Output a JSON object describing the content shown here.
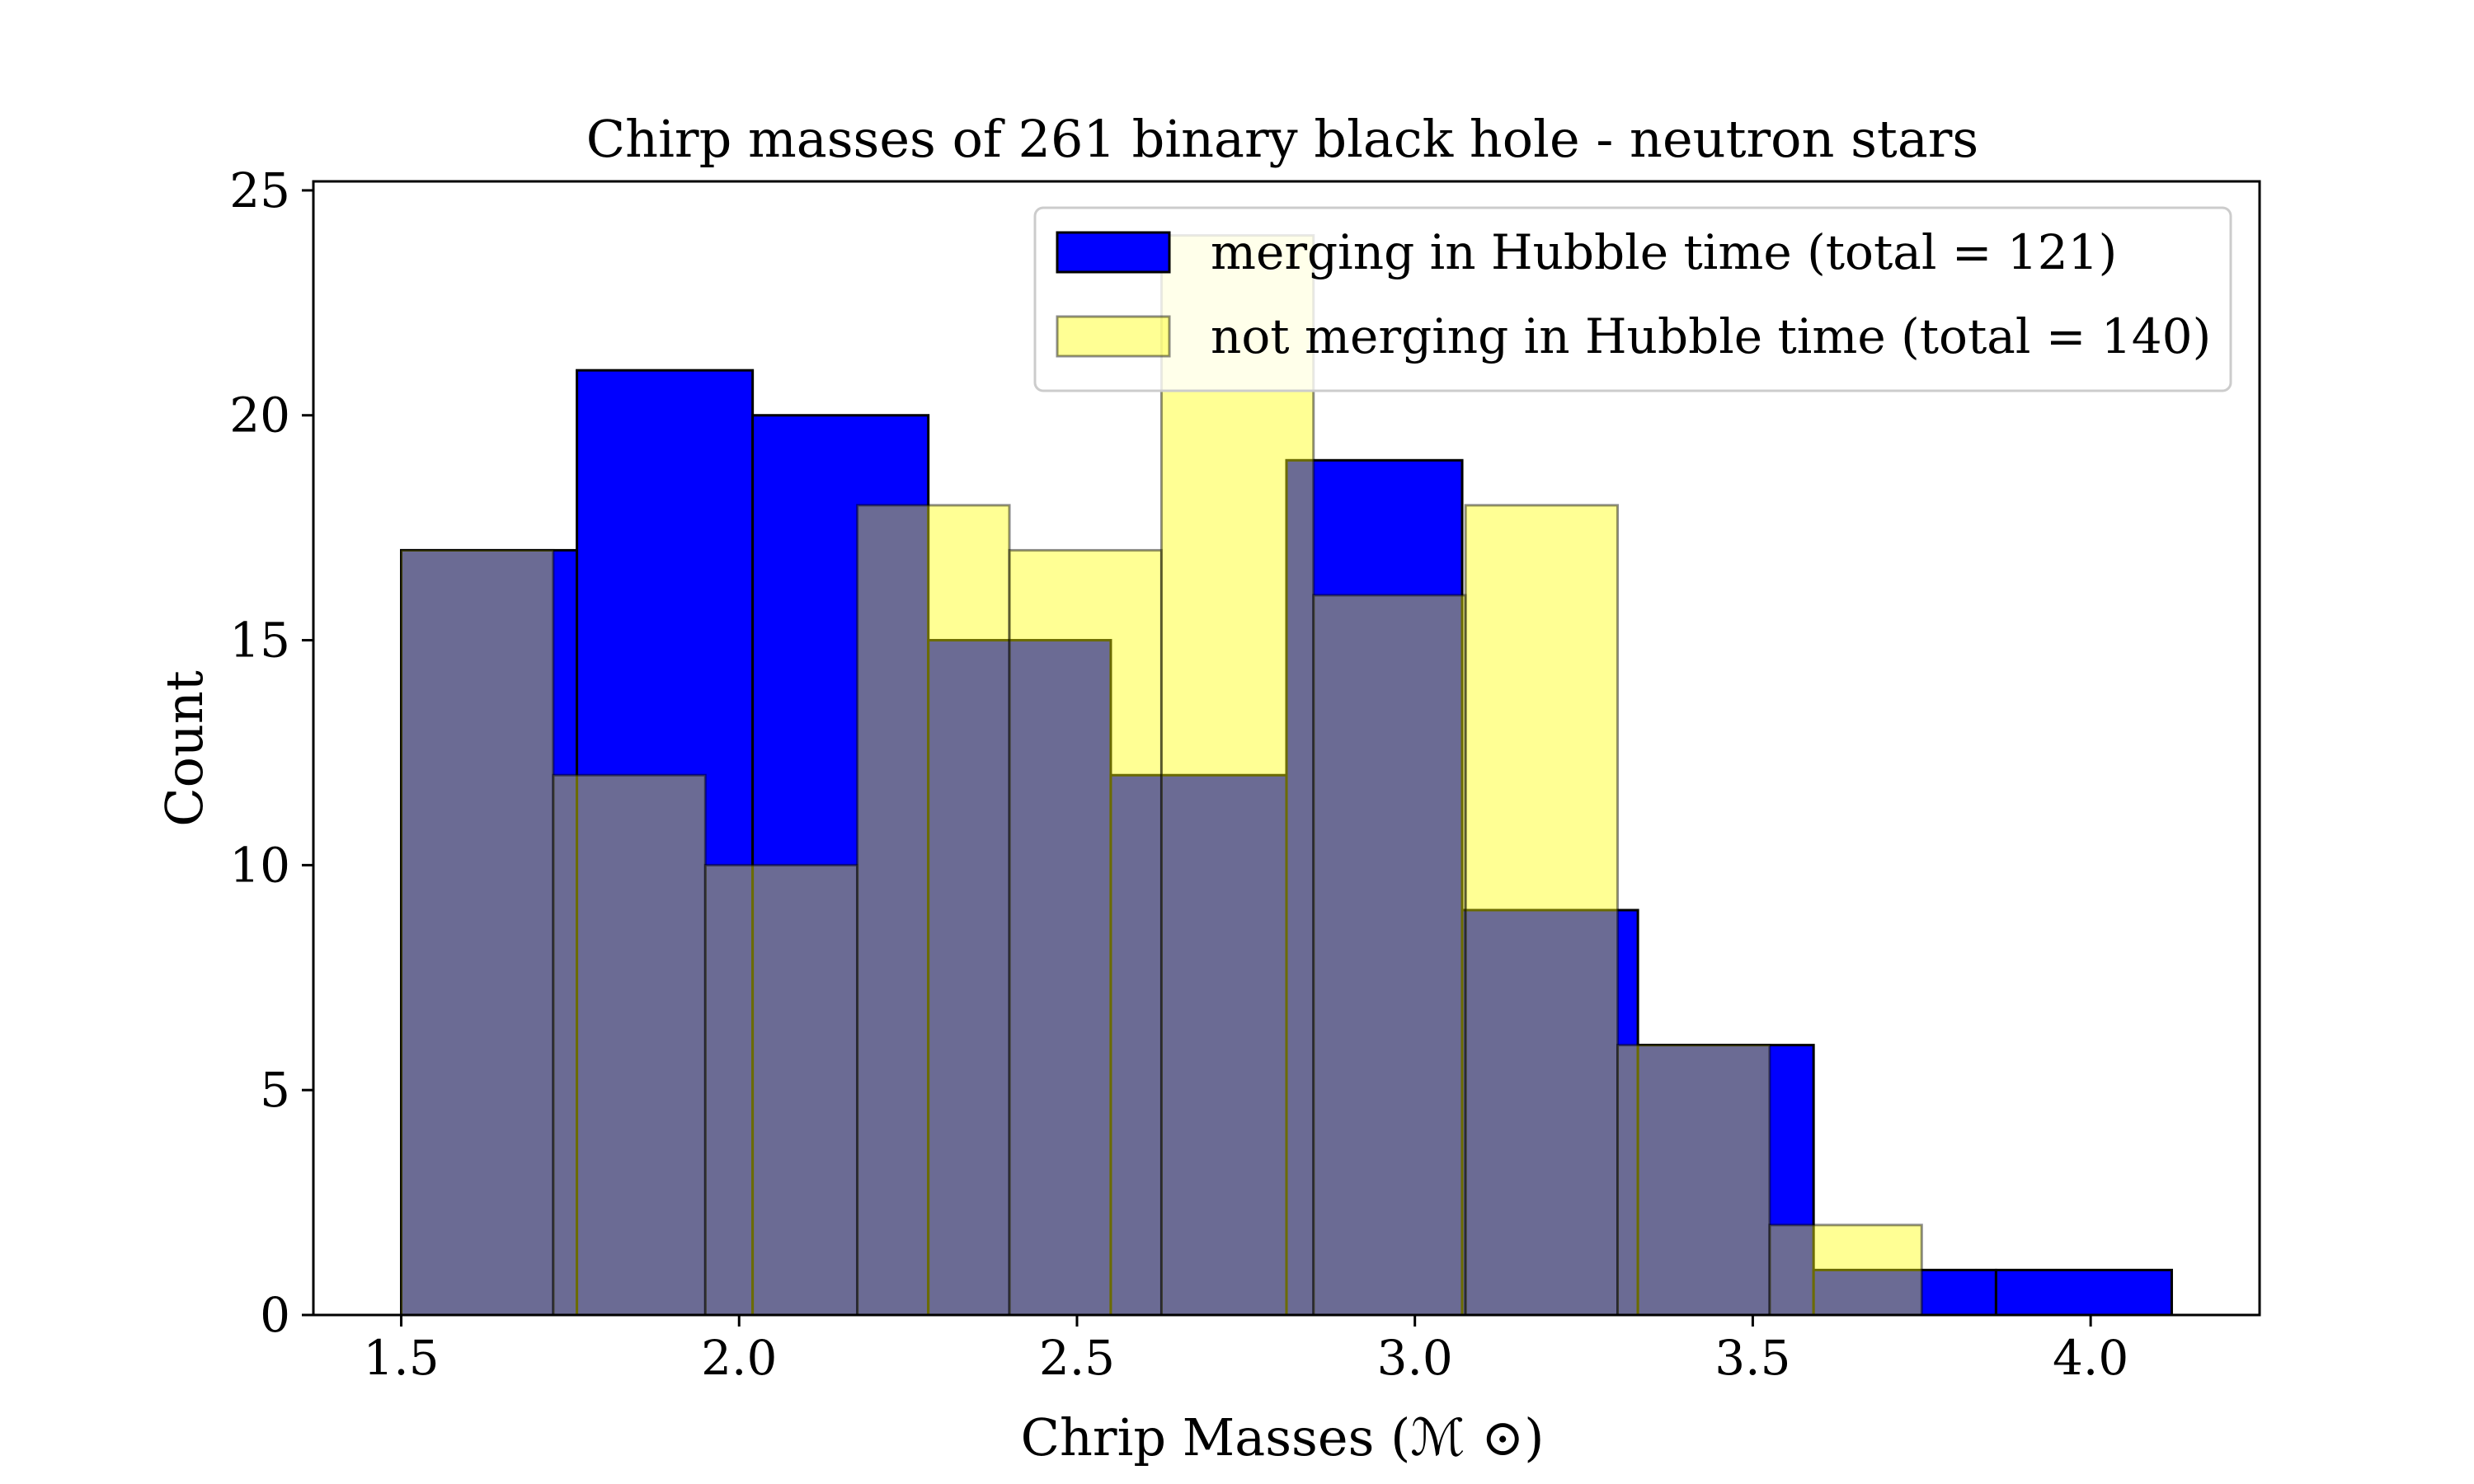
{
  "chart_data": {
    "type": "bar",
    "title": "Chirp masses of 261 binary black hole - neutron stars",
    "xlabel": "Chrip Masses (ℳ ⊙)",
    "ylabel": "Count",
    "xlim": [
      1.37,
      4.25
    ],
    "ylim": [
      0,
      25.2
    ],
    "xticks": [
      1.5,
      2.0,
      2.5,
      3.0,
      3.5,
      4.0
    ],
    "xtick_labels": [
      "1.5",
      "2.0",
      "2.5",
      "3.0",
      "3.5",
      "4.0"
    ],
    "yticks": [
      0,
      5,
      10,
      15,
      20,
      25
    ],
    "ytick_labels": [
      "0",
      "5",
      "10",
      "15",
      "20",
      "25"
    ],
    "grid": false,
    "legend_position": "top-right",
    "series": [
      {
        "name": "merging in Hubble time (total = 121)",
        "color": "#0000ff",
        "opacity": 1.0,
        "edges": [
          1.5,
          1.76,
          2.02,
          2.28,
          2.55,
          2.81,
          3.07,
          3.33,
          3.59,
          3.86,
          4.12
        ],
        "values": [
          17,
          21,
          20,
          15,
          12,
          19,
          9,
          6,
          1,
          1
        ]
      },
      {
        "name": "not merging in Hubble time (total = 140)",
        "color": "#ffff00",
        "opacity": 0.42,
        "edges": [
          1.5,
          1.725,
          1.95,
          2.175,
          2.4,
          2.625,
          2.85,
          3.075,
          3.3,
          3.525,
          3.75
        ],
        "values": [
          17,
          12,
          10,
          18,
          17,
          24,
          16,
          18,
          6,
          2
        ]
      }
    ]
  }
}
